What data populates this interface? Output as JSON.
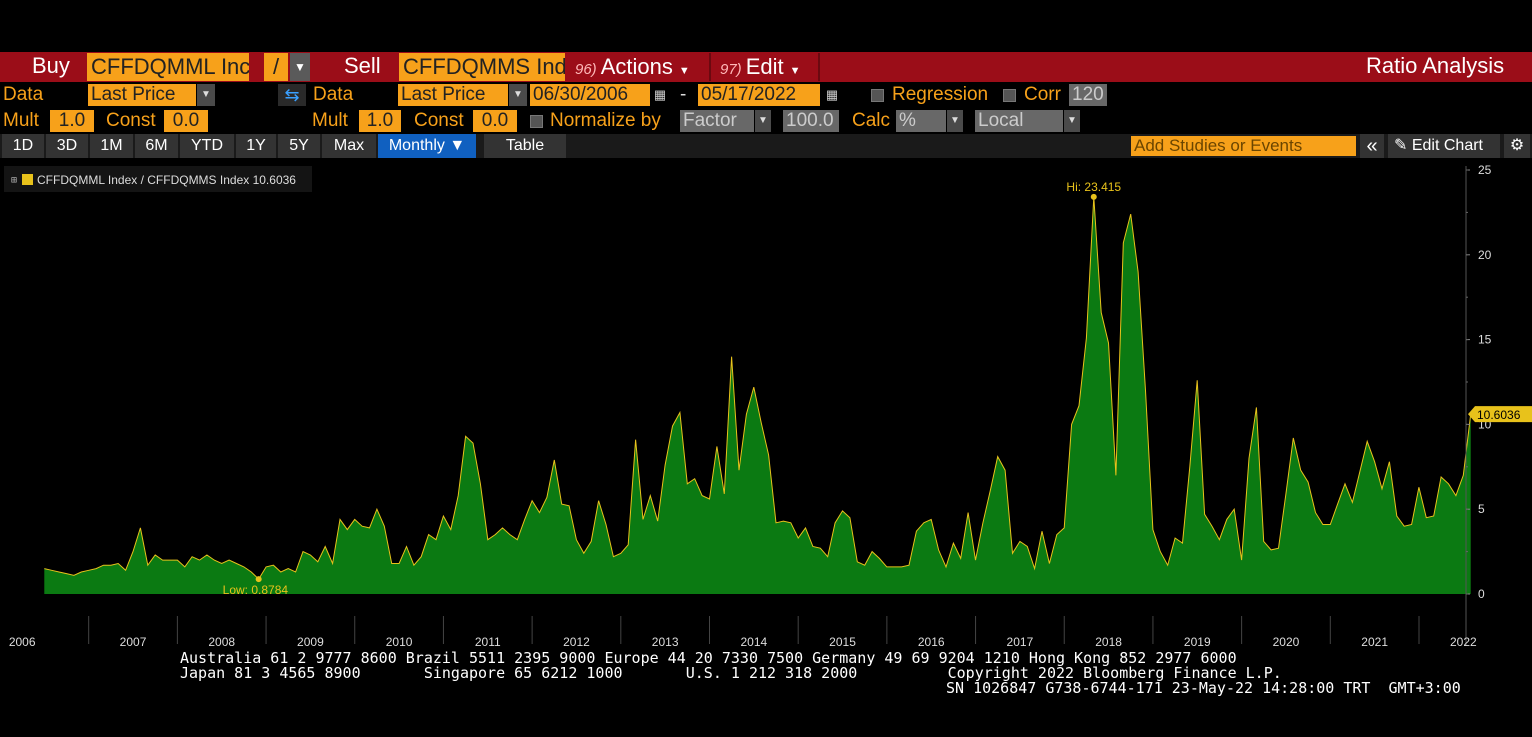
{
  "header": {
    "buy_label": "Buy",
    "buy_ticker": "CFFDQMML Inc",
    "operator": "/",
    "sell_label": "Sell",
    "sell_ticker": "CFFDQMMS Ind",
    "actions_num": "96)",
    "actions_label": "Actions",
    "edit_num": "97)",
    "edit_label": "Edit",
    "title": "Ratio Analysis"
  },
  "row1": {
    "data_label": "Data",
    "left_data": "Last Price",
    "right_data_label": "Data",
    "right_data": "Last Price",
    "start_date": "06/30/2006",
    "date_sep": "-",
    "end_date": "05/17/2022",
    "regression_label": "Regression",
    "corr_label": "Corr",
    "corr_value": "120"
  },
  "row2": {
    "mult_label": "Mult",
    "mult_value": "1.0",
    "const_label": "Const",
    "const_value": "0.0",
    "mult2_label": "Mult",
    "mult2_value": "1.0",
    "const2_label": "Const",
    "const2_value": "0.0",
    "normalize_label": "Normalize by",
    "normalize_value": "Factor",
    "factor_value": "100.0",
    "calc_label": "Calc",
    "calc_value": "%",
    "local_value": "Local"
  },
  "toolbar": {
    "ranges": [
      "1D",
      "3D",
      "1M",
      "6M",
      "YTD",
      "1Y",
      "5Y",
      "Max"
    ],
    "period": "Monthly ▼",
    "table": "Table",
    "studies_placeholder": "Add Studies or Events",
    "collapse": "«",
    "edit_chart": "Edit Chart"
  },
  "colors": {
    "accent": "#f7a11a",
    "header_red": "#9b0d18",
    "area_fill": "#0b7a12",
    "line": "#e8c21b",
    "active_tab": "#1060c0"
  },
  "chart_data": {
    "type": "area",
    "legend": "CFFDQMML Index / CFFDQMMS Index 10.6036",
    "legend_placement": "top-left",
    "last_value": 10.6036,
    "last_label": "10.6036",
    "hi_label": "Hi: 23.415",
    "low_label": "Low: 0.8784",
    "ylim": [
      0,
      25
    ],
    "y_ticks": [
      0,
      5,
      10,
      15,
      20,
      25
    ],
    "x_labels": [
      "2006",
      "2007",
      "2008",
      "2009",
      "2010",
      "2011",
      "2012",
      "2013",
      "2014",
      "2015",
      "2016",
      "2017",
      "2018",
      "2019",
      "2020",
      "2021",
      "2022"
    ],
    "x_start": 2006.5,
    "x_step": 0.08333,
    "values": [
      1.5,
      1.4,
      1.3,
      1.2,
      1.1,
      1.3,
      1.4,
      1.5,
      1.7,
      1.7,
      1.8,
      1.4,
      2.5,
      3.9,
      1.7,
      2.3,
      2.0,
      2.0,
      2.0,
      1.6,
      2.2,
      2.0,
      2.3,
      2.0,
      1.8,
      2.0,
      1.8,
      1.6,
      1.3,
      0.8784,
      1.6,
      1.7,
      1.3,
      1.5,
      1.3,
      2.5,
      2.3,
      1.9,
      2.8,
      1.8,
      4.4,
      3.8,
      4.4,
      4.0,
      3.9,
      5.0,
      4.0,
      1.8,
      1.8,
      2.8,
      1.7,
      2.2,
      3.5,
      3.2,
      4.6,
      3.8,
      5.8,
      9.3,
      8.9,
      6.5,
      3.2,
      3.5,
      3.9,
      3.5,
      3.2,
      4.4,
      5.5,
      4.8,
      5.7,
      7.9,
      5.3,
      5.2,
      3.2,
      2.4,
      3.1,
      5.5,
      4.1,
      2.2,
      2.4,
      2.9,
      9.1,
      4.4,
      5.8,
      4.3,
      7.6,
      9.9,
      10.7,
      6.5,
      6.8,
      5.8,
      5.6,
      8.7,
      5.9,
      14.0,
      7.3,
      10.6,
      12.2,
      10.1,
      8.2,
      4.2,
      4.3,
      4.2,
      3.3,
      3.9,
      2.8,
      2.7,
      2.2,
      4.2,
      4.9,
      4.5,
      1.9,
      1.7,
      2.5,
      2.1,
      1.6,
      1.6,
      1.6,
      1.7,
      3.7,
      4.2,
      4.4,
      2.6,
      1.6,
      3.0,
      2.1,
      4.8,
      2.0,
      4.2,
      6.1,
      8.1,
      7.3,
      2.4,
      3.1,
      2.8,
      1.5,
      3.7,
      1.8,
      3.5,
      3.9,
      10.0,
      11.1,
      15.1,
      23.415,
      16.6,
      14.8,
      7.0,
      20.7,
      22.4,
      19.0,
      12.0,
      3.8,
      2.5,
      1.7,
      3.3,
      3.0,
      7.5,
      12.6,
      4.7,
      4.0,
      3.2,
      4.4,
      5.0,
      2.0,
      8.0,
      11.0,
      3.1,
      2.6,
      2.7,
      5.9,
      9.2,
      7.3,
      6.6,
      4.8,
      4.1,
      4.1,
      5.3,
      6.5,
      5.4,
      7.2,
      9.0,
      7.8,
      6.2,
      7.8,
      4.6,
      4.0,
      4.1,
      6.3,
      4.5,
      4.6,
      6.9,
      6.5,
      5.8,
      7.0,
      10.6036
    ]
  },
  "footer": {
    "line1": "Australia 61 2 9777 8600 Brazil 5511 2395 9000 Europe 44 20 7330 7500 Germany 49 69 9204 1210 Hong Kong 852 2977 6000",
    "line2": "Japan 81 3 4565 8900       Singapore 65 6212 1000       U.S. 1 212 318 2000          Copyright 2022 Bloomberg Finance L.P.",
    "line3": "SN 1026847 G738-6744-171 23-May-22 14:28:00 TRT  GMT+3:00"
  }
}
